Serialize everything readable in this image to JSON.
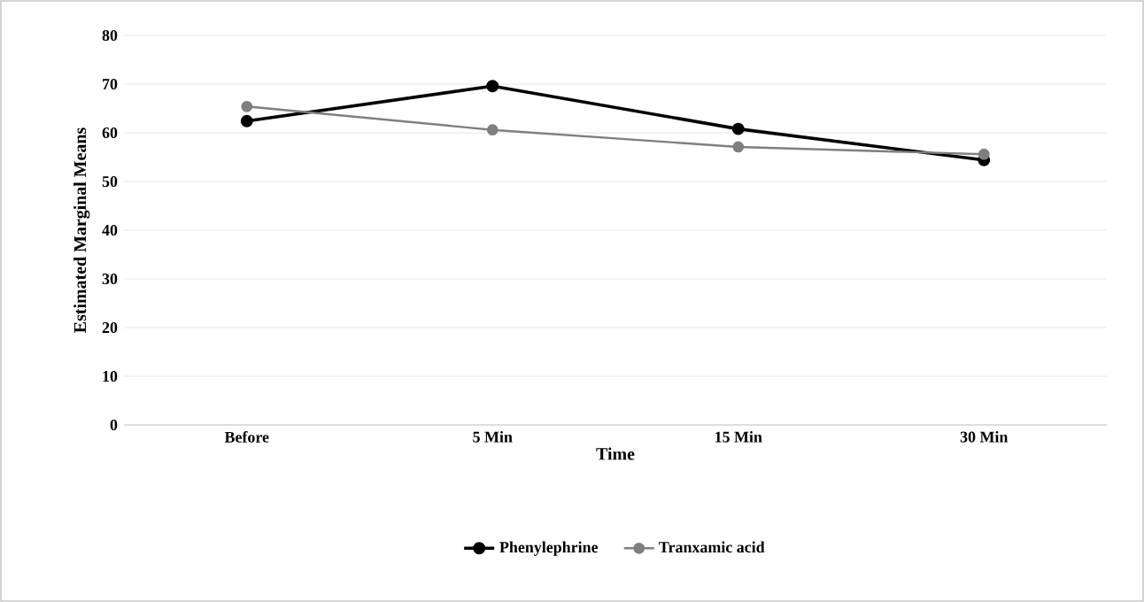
{
  "chart_data": {
    "type": "line",
    "xlabel": "Time",
    "ylabel": "Estimated Marginal Means",
    "categories": [
      "Before",
      "5 Min",
      "15 Min",
      "30 Min"
    ],
    "series": [
      {
        "name": "Phenylephrine",
        "color": "#000000",
        "values": [
          62.4,
          69.6,
          60.8,
          54.4
        ]
      },
      {
        "name": "Tranxamic acid",
        "color": "#7f7f7f",
        "values": [
          65.4,
          60.6,
          57.1,
          55.6
        ]
      }
    ],
    "ylim": [
      0,
      80
    ],
    "yticks": [
      0,
      10,
      20,
      30,
      40,
      50,
      60,
      70,
      80
    ],
    "grid": "y",
    "legend": "bottom",
    "marker": "circle",
    "line_style": "solid"
  }
}
